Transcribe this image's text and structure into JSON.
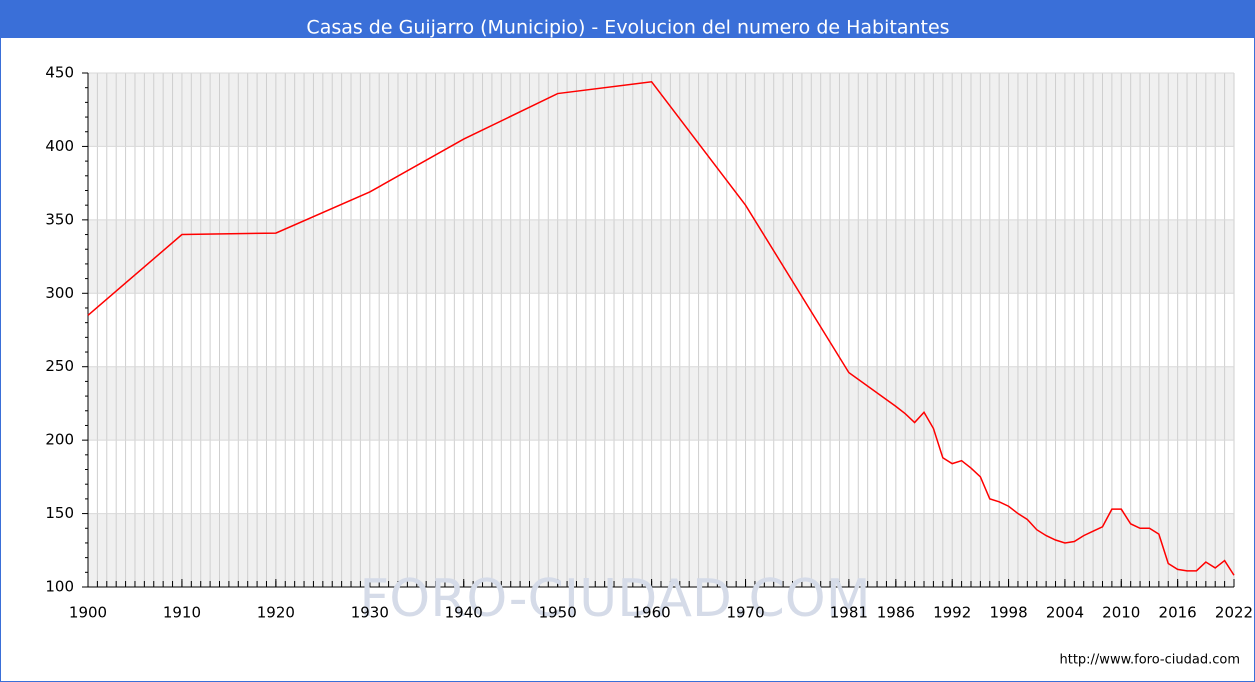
{
  "chart_data": {
    "type": "line",
    "title": "Casas de Guijarro (Municipio) - Evolucion del numero de Habitantes",
    "watermark": "FORO-CIUDAD.COM",
    "source": "http://www.foro-ciudad.com",
    "x": [
      1900,
      1910,
      1920,
      1930,
      1940,
      1950,
      1960,
      1970,
      1981,
      1986,
      1987,
      1988,
      1989,
      1990,
      1991,
      1992,
      1993,
      1994,
      1995,
      1996,
      1997,
      1998,
      1999,
      2000,
      2001,
      2002,
      2003,
      2004,
      2005,
      2006,
      2007,
      2008,
      2009,
      2010,
      2011,
      2012,
      2013,
      2014,
      2015,
      2016,
      2017,
      2018,
      2019,
      2020,
      2021,
      2022
    ],
    "series": [
      {
        "name": "Habitantes",
        "color": "#ff0000",
        "values": [
          285,
          340,
          341,
          369,
          405,
          436,
          444,
          360,
          246,
          223,
          218,
          212,
          219,
          208,
          188,
          184,
          186,
          181,
          175,
          160,
          158,
          155,
          150,
          146,
          139,
          135,
          132,
          130,
          131,
          135,
          138,
          141,
          153,
          153,
          143,
          140,
          140,
          136,
          116,
          112,
          111,
          111,
          117,
          113,
          118,
          108
        ]
      }
    ],
    "xlim": [
      1900,
      2022
    ],
    "xticks": [
      1900,
      1910,
      1920,
      1930,
      1940,
      1950,
      1960,
      1970,
      1981,
      1986,
      1992,
      1998,
      2004,
      2010,
      2016,
      2022
    ],
    "ylim": [
      100,
      450
    ],
    "yticks": [
      100,
      150,
      200,
      250,
      300,
      350,
      400,
      450
    ],
    "grid": true
  }
}
